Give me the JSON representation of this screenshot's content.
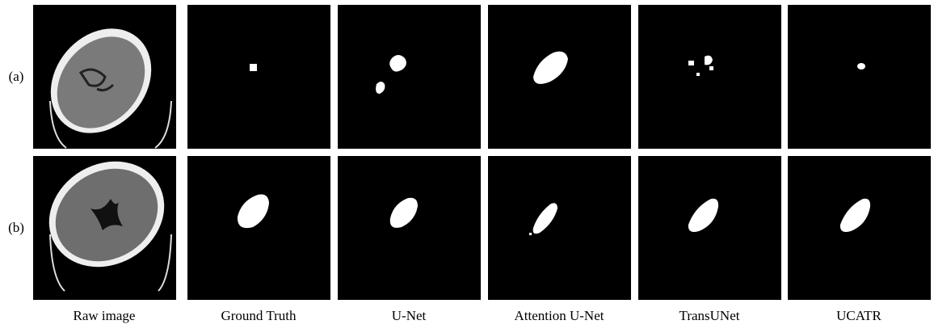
{
  "row_labels": [
    "(a)",
    "(b)"
  ],
  "column_labels": [
    "Raw image",
    "Ground Truth",
    "U-Net",
    "Attention U-Net",
    "TransUNet",
    "UCATR"
  ]
}
